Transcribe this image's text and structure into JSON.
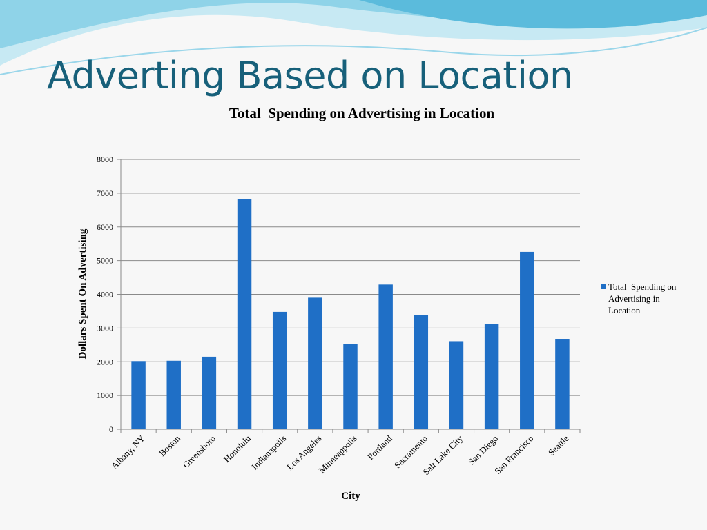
{
  "slide": {
    "title": "Adverting Based on Location"
  },
  "colors": {
    "title": "#17607a",
    "bar": "#1f6fc6",
    "wave_light": "#bfe6f2",
    "wave_mid": "#7fcfe6",
    "wave_dark": "#4db3d6"
  },
  "chart_data": {
    "type": "bar",
    "title": "Total  Spending on Advertising in Location",
    "xlabel": "City",
    "ylabel": "Dollars Spent On Advertising",
    "categories": [
      "Albany, NY",
      "Boston",
      "Greensboro",
      "Honolulu",
      "Indianapolis",
      "Los Angeles",
      "Minneappolis",
      "Portland",
      "Sacramento",
      "Salt Lake City",
      "San Diego",
      "San Francisco",
      "Seattle"
    ],
    "series": [
      {
        "name": "Total  Spending on Advertising in Location",
        "values": [
          2020,
          2030,
          2150,
          6820,
          3480,
          3900,
          2520,
          4290,
          3380,
          2610,
          3120,
          5260,
          2680
        ]
      }
    ],
    "ylim": [
      0,
      8000
    ],
    "yticks": [
      0,
      1000,
      2000,
      3000,
      4000,
      5000,
      6000,
      7000,
      8000
    ],
    "legend_lines": [
      "Total  Spending on",
      "Advertising in",
      "Location"
    ],
    "legend_position": "right",
    "grid": true
  }
}
